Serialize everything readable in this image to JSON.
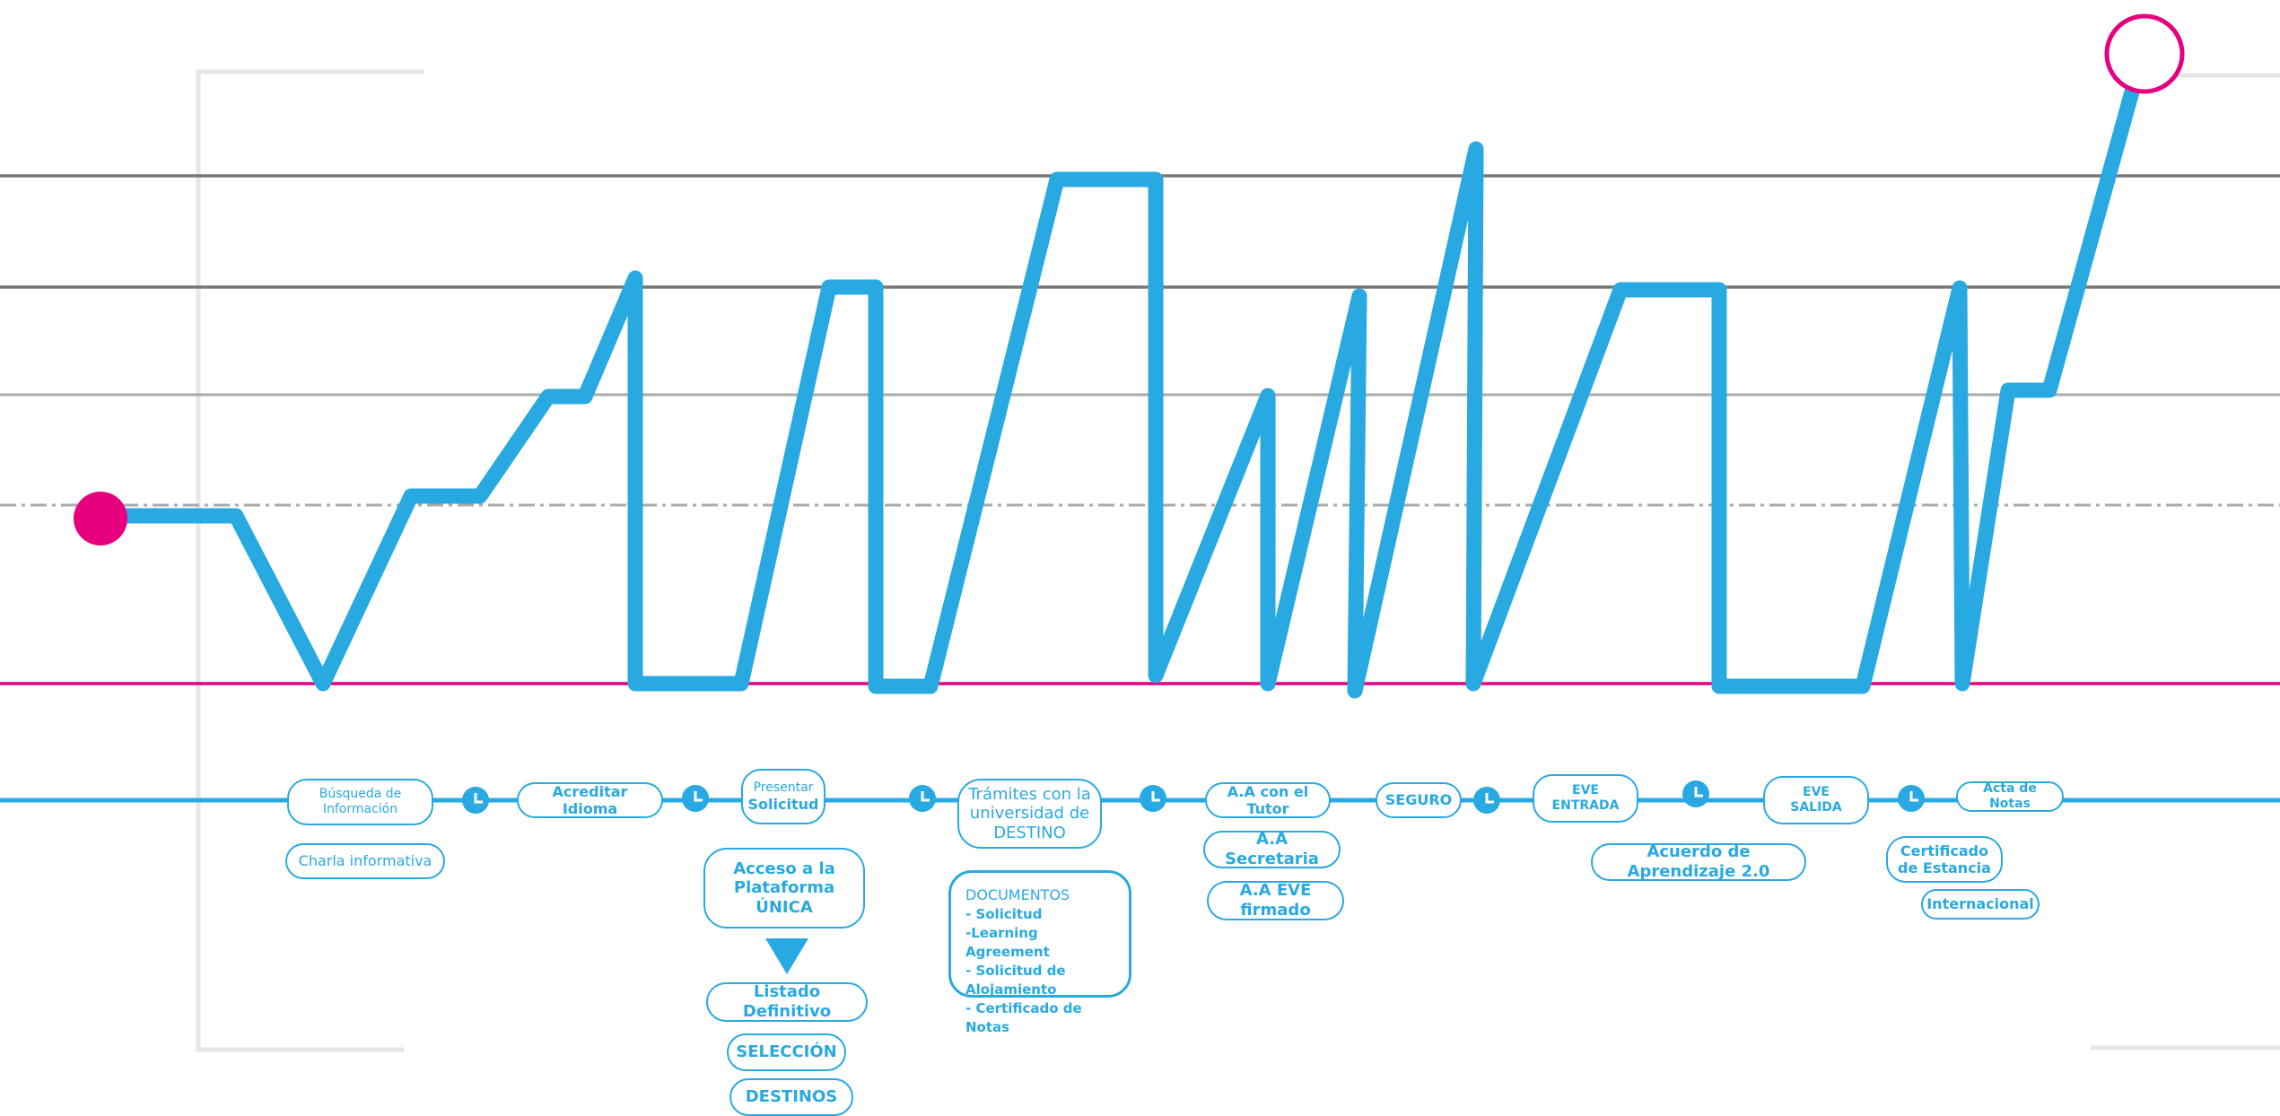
{
  "colors": {
    "line": "#29a9e1",
    "accent": "#e6007e",
    "grid_dark": "#777777",
    "grid_light": "#aaaaaa",
    "frame": "#e6e6e6"
  },
  "steps": [
    {
      "id": "busqueda",
      "text": "Búsqueda de\nInformación"
    },
    {
      "id": "charla",
      "text": "Charla informativa"
    },
    {
      "id": "idioma",
      "text": "Acreditar Idioma"
    },
    {
      "id": "presentar_top",
      "text": "Presentar"
    },
    {
      "id": "presentar_bottom",
      "text": "Solicitud"
    },
    {
      "id": "acceso",
      "text": "Acceso a la\nPlataforma\nÚNICA"
    },
    {
      "id": "listado",
      "text": "Listado Definitivo"
    },
    {
      "id": "seleccion",
      "text": "SELECCIÓN"
    },
    {
      "id": "destinos",
      "text": "DESTINOS"
    },
    {
      "id": "tramites",
      "text": "Trámites con la\nuniversidad de\nDESTINO"
    },
    {
      "id": "aa_tutor",
      "text": "A.A con el Tutor"
    },
    {
      "id": "aa_secretaria",
      "text": "A.A Secretaria"
    },
    {
      "id": "aa_eve",
      "text": "A.A EVE firmado"
    },
    {
      "id": "seguro",
      "text": "SEGURO"
    },
    {
      "id": "eve_entrada",
      "text": "EVE\nENTRADA"
    },
    {
      "id": "acuerdo",
      "text": "Acuerdo de Aprendizaje 2.0"
    },
    {
      "id": "eve_salida",
      "text": "EVE\nSALIDA"
    },
    {
      "id": "acta",
      "text": "Acta de Notas"
    },
    {
      "id": "certificado",
      "text": "Certificado\nde Estancia"
    },
    {
      "id": "internacional",
      "text": "Internacional"
    }
  ],
  "documentos": {
    "title": "DOCUMENTOS",
    "items": [
      "- Solicitud",
      "-Learning Agreement",
      "- Solicitud de Alojamiento",
      "- Certificado de Notas"
    ]
  },
  "icons": [
    "clock-icon",
    "arrow-down-icon",
    "start-dot-icon",
    "end-ring-icon"
  ]
}
